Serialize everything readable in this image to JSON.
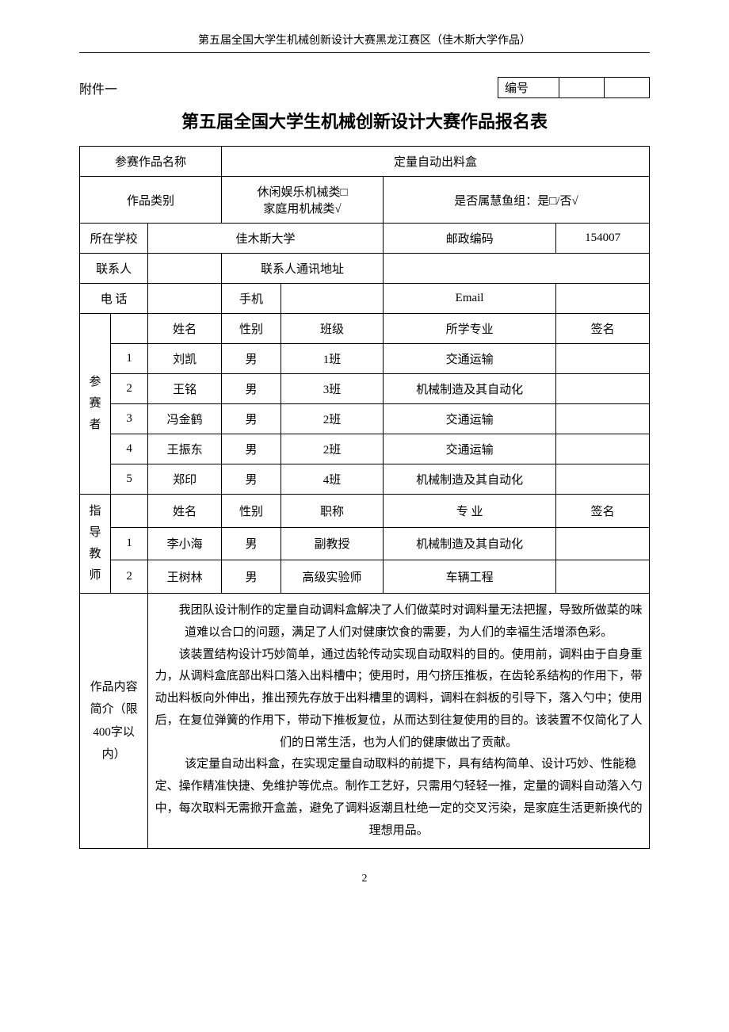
{
  "header": "第五届全国大学生机械创新设计大赛黑龙江赛区（佳木斯大学作品）",
  "appendix": "附件一",
  "id_label": "编号",
  "title": "第五届全国大学生机械创新设计大赛作品报名表",
  "labels": {
    "work_name": "参赛作品名称",
    "category": "作品类别",
    "huiyu": "是否属慧鱼组：是□/否√",
    "school": "所在学校",
    "postcode": "邮政编码",
    "contact": "联系人",
    "contact_addr": "联系人通讯地址",
    "phone": "电 话",
    "mobile": "手机",
    "email": "Email",
    "name": "姓名",
    "gender": "性别",
    "class": "班级",
    "major": "所学专业",
    "sign": "签名",
    "title_job": "职称",
    "major2": "专 业",
    "participants": "参赛者",
    "advisors": "指导教师",
    "desc_label": "作品内容简介（限400字以内）"
  },
  "work_name": "定量自动出料盒",
  "category_text": "休闲娱乐机械类□\n家庭用机械类√",
  "school": "佳木斯大学",
  "postcode": "154007",
  "participants": [
    {
      "n": "1",
      "name": "刘凯",
      "gender": "男",
      "class": "1班",
      "major": "交通运输"
    },
    {
      "n": "2",
      "name": "王铭",
      "gender": "男",
      "class": "3班",
      "major": "机械制造及其自动化"
    },
    {
      "n": "3",
      "name": "冯金鹤",
      "gender": "男",
      "class": "2班",
      "major": "交通运输"
    },
    {
      "n": "4",
      "name": "王振东",
      "gender": "男",
      "class": "2班",
      "major": "交通运输"
    },
    {
      "n": "5",
      "name": "郑印",
      "gender": "男",
      "class": "4班",
      "major": "机械制造及其自动化"
    }
  ],
  "advisors": [
    {
      "n": "1",
      "name": "李小海",
      "gender": "男",
      "title": "副教授",
      "major": "机械制造及其自动化"
    },
    {
      "n": "2",
      "name": "王树林",
      "gender": "男",
      "title": "高级实验师",
      "major": "车辆工程"
    }
  ],
  "description": {
    "p1": "我团队设计制作的定量自动调料盒解决了人们做菜时对调料量无法把握，导致所做菜的味道难以合口的问题，满足了人们对健康饮食的需要，为人们的幸福生活增添色彩。",
    "p2": "该装置结构设计巧妙简单，通过齿轮传动实现自动取料的目的。使用前，调料由于自身重力，从调料盒底部出料口落入出料槽中；使用时，用勺挤压推板，在齿轮系结构的作用下，带动出料板向外伸出，推出预先存放于出料槽里的调料，调料在斜板的引导下，落入勺中；使用后，在复位弹簧的作用下，带动下推板复位，从而达到往复使用的目的。该装置不仅简化了人们的日常生活，也为人们的健康做出了贡献。",
    "p3": "该定量自动出料盒，在实现定量自动取料的前提下，具有结构简单、设计巧妙、性能稳定、操作精准快捷、免维护等优点。制作工艺好，只需用勺轻轻一推，定量的调料自动落入勺中，每次取料无需掀开盒盖，避免了调料返潮且杜绝一定的交叉污染，是家庭生活更新换代的理想用品。"
  },
  "page_num": "2"
}
